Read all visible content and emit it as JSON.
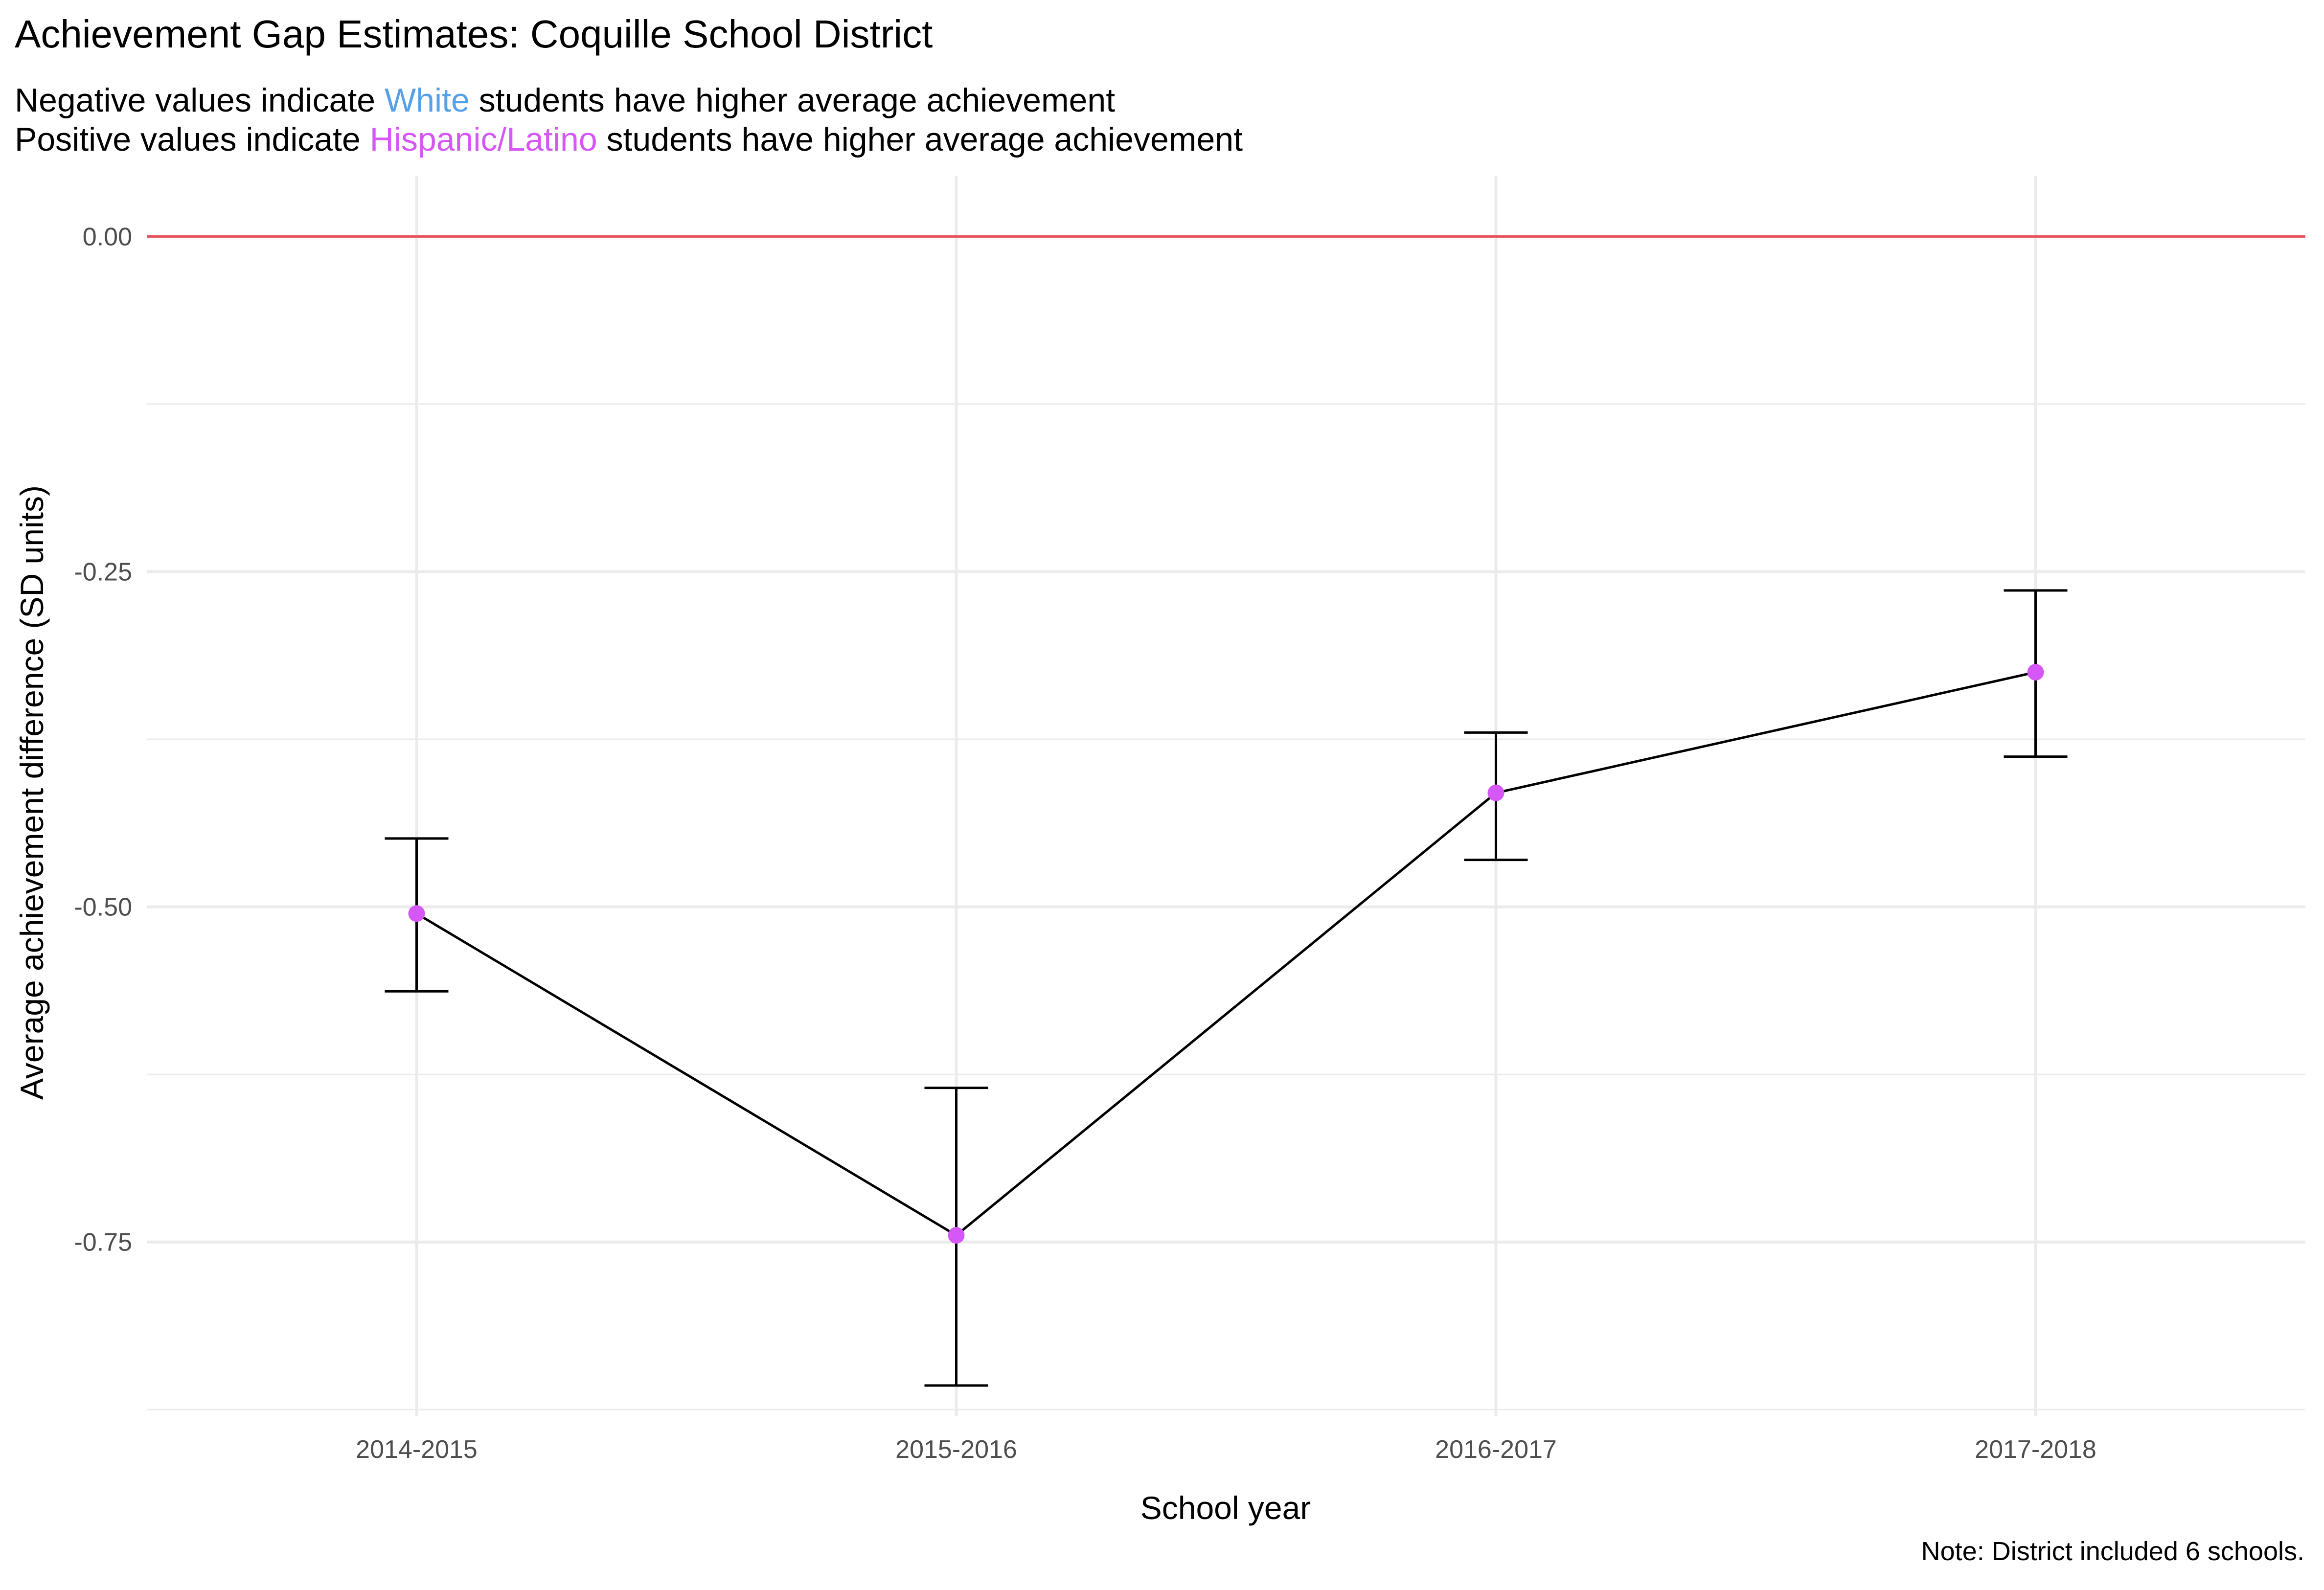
{
  "chart_data": {
    "type": "line",
    "title": "Achievement Gap Estimates: Coquille School District",
    "subtitle": {
      "line1": {
        "before": "Negative values indicate ",
        "group": "White",
        "after": " students have higher average achievement"
      },
      "line2": {
        "before": "Positive values indicate ",
        "group": "Hispanic/Latino",
        "after": " students have higher average achievement"
      }
    },
    "xlabel": "School year",
    "ylabel": "Average achievement difference (SD units)",
    "caption": "Note: District included 6 schools.",
    "categories": [
      "2014-2015",
      "2015-2016",
      "2016-2017",
      "2017-2018"
    ],
    "values": [
      -0.505,
      -0.745,
      -0.415,
      -0.325
    ],
    "lower": [
      -0.563,
      -0.857,
      -0.465,
      -0.388
    ],
    "upper": [
      -0.449,
      -0.635,
      -0.37,
      -0.264
    ],
    "ylim": [
      -0.88,
      0.045
    ],
    "yticks": [
      0.0,
      -0.25,
      -0.5,
      -0.75
    ],
    "ytick_labels": [
      "0.00",
      "-0.25",
      "-0.50",
      "-0.75"
    ],
    "reference_line": 0.0,
    "grid": true,
    "colors": {
      "point": "#D557F5",
      "white_label": "#56A0E8",
      "hispanic_label": "#D557F5",
      "reference_line": "#E8505B",
      "line": "#000000",
      "grid": "#EBEBEB"
    }
  }
}
